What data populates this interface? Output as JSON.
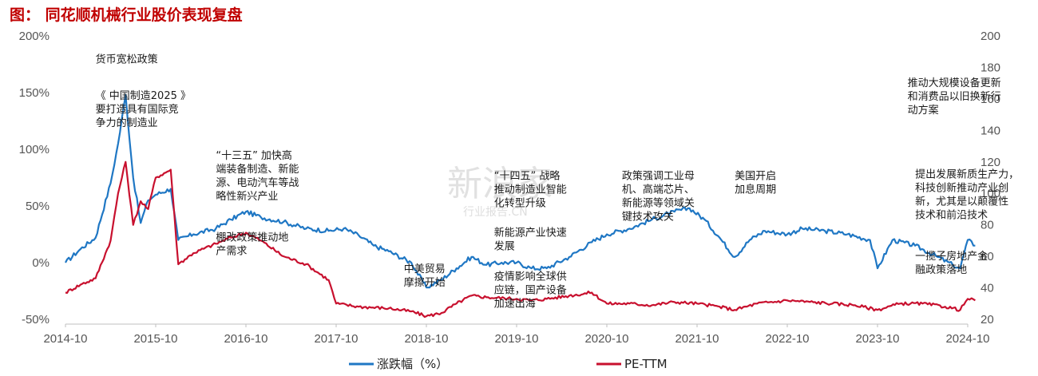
{
  "title": "图：  同花顺机械行业股价表现复盘",
  "watermark": {
    "text": "新浪家",
    "subtext": "行业报告.CN"
  },
  "colors": {
    "series1": "#1f77c4",
    "series2": "#c8102e",
    "title": "#c00000"
  },
  "chart_data": {
    "type": "line",
    "x_ticks": [
      "2014-10",
      "2015-10",
      "2016-10",
      "2017-10",
      "2018-10",
      "2019-10",
      "2020-10",
      "2021-10",
      "2022-10",
      "2023-10",
      "2024-10"
    ],
    "y_left_ticks": [
      "200%",
      "150%",
      "100%",
      "50%",
      "0%",
      "-50%"
    ],
    "y_left_range": [
      -50,
      200
    ],
    "y_right_ticks": [
      "200",
      "180",
      "160",
      "140",
      "120",
      "100",
      "80",
      "60",
      "40",
      "20"
    ],
    "y_right_range": [
      20,
      200
    ],
    "legend_position": "bottom",
    "series": [
      {
        "name": "涨跌幅（%）",
        "axis": "left",
        "color": "#1f77c4",
        "points": [
          [
            "2014-10",
            0
          ],
          [
            "2014-12",
            12
          ],
          [
            "2015-02",
            22
          ],
          [
            "2015-04",
            70
          ],
          [
            "2015-05",
            105
          ],
          [
            "2015-06",
            148
          ],
          [
            "2015-07",
            75
          ],
          [
            "2015-08",
            35
          ],
          [
            "2015-09",
            55
          ],
          [
            "2015-10",
            60
          ],
          [
            "2015-12",
            65
          ],
          [
            "2016-01",
            20
          ],
          [
            "2016-03",
            25
          ],
          [
            "2016-06",
            30
          ],
          [
            "2016-08",
            38
          ],
          [
            "2016-10",
            45
          ],
          [
            "2016-12",
            40
          ],
          [
            "2017-03",
            36
          ],
          [
            "2017-06",
            30
          ],
          [
            "2017-09",
            28
          ],
          [
            "2017-11",
            30
          ],
          [
            "2018-01",
            24
          ],
          [
            "2018-03",
            15
          ],
          [
            "2018-05",
            10
          ],
          [
            "2018-08",
            0
          ],
          [
            "2018-10",
            -22
          ],
          [
            "2018-12",
            -15
          ],
          [
            "2019-02",
            -5
          ],
          [
            "2019-04",
            5
          ],
          [
            "2019-06",
            -2
          ],
          [
            "2019-08",
            0
          ],
          [
            "2019-10",
            0
          ],
          [
            "2019-12",
            -5
          ],
          [
            "2020-02",
            -5
          ],
          [
            "2020-05",
            5
          ],
          [
            "2020-08",
            18
          ],
          [
            "2020-10",
            25
          ],
          [
            "2021-01",
            30
          ],
          [
            "2021-04",
            38
          ],
          [
            "2021-07",
            45
          ],
          [
            "2021-09",
            48
          ],
          [
            "2021-11",
            38
          ],
          [
            "2022-01",
            22
          ],
          [
            "2022-03",
            5
          ],
          [
            "2022-05",
            20
          ],
          [
            "2022-07",
            28
          ],
          [
            "2022-10",
            25
          ],
          [
            "2022-12",
            30
          ],
          [
            "2023-03",
            28
          ],
          [
            "2023-06",
            25
          ],
          [
            "2023-09",
            20
          ],
          [
            "2023-10",
            -5
          ],
          [
            "2023-12",
            20
          ],
          [
            "2024-03",
            15
          ],
          [
            "2024-06",
            5
          ],
          [
            "2024-08",
            -2
          ],
          [
            "2024-09",
            -5
          ],
          [
            "2024-10",
            20
          ],
          [
            "2024-11",
            15
          ]
        ]
      },
      {
        "name": "PE-TTM",
        "axis": "right",
        "color": "#c8102e",
        "points": [
          [
            "2014-10",
            37
          ],
          [
            "2014-12",
            42
          ],
          [
            "2015-02",
            46
          ],
          [
            "2015-04",
            70
          ],
          [
            "2015-05",
            100
          ],
          [
            "2015-06",
            120
          ],
          [
            "2015-07",
            80
          ],
          [
            "2015-08",
            95
          ],
          [
            "2015-09",
            90
          ],
          [
            "2015-10",
            110
          ],
          [
            "2015-12",
            115
          ],
          [
            "2016-01",
            55
          ],
          [
            "2016-03",
            62
          ],
          [
            "2016-06",
            68
          ],
          [
            "2016-08",
            72
          ],
          [
            "2016-10",
            75
          ],
          [
            "2016-12",
            70
          ],
          [
            "2017-03",
            60
          ],
          [
            "2017-06",
            55
          ],
          [
            "2017-09",
            45
          ],
          [
            "2017-10",
            30
          ],
          [
            "2018-01",
            28
          ],
          [
            "2018-05",
            27
          ],
          [
            "2018-08",
            25
          ],
          [
            "2018-10",
            22
          ],
          [
            "2018-12",
            24
          ],
          [
            "2019-02",
            30
          ],
          [
            "2019-04",
            35
          ],
          [
            "2019-06",
            34
          ],
          [
            "2019-10",
            33
          ],
          [
            "2019-12",
            32
          ],
          [
            "2020-02",
            33
          ],
          [
            "2020-05",
            35
          ],
          [
            "2020-08",
            37
          ],
          [
            "2020-10",
            30
          ],
          [
            "2021-01",
            30
          ],
          [
            "2021-04",
            29
          ],
          [
            "2021-07",
            31
          ],
          [
            "2021-10",
            30
          ],
          [
            "2022-01",
            28
          ],
          [
            "2022-03",
            26
          ],
          [
            "2022-06",
            30
          ],
          [
            "2022-10",
            32
          ],
          [
            "2023-01",
            31
          ],
          [
            "2023-04",
            30
          ],
          [
            "2023-07",
            29
          ],
          [
            "2023-10",
            26
          ],
          [
            "2024-01",
            30
          ],
          [
            "2024-04",
            30
          ],
          [
            "2024-07",
            28
          ],
          [
            "2024-09",
            26
          ],
          [
            "2024-10",
            33
          ],
          [
            "2024-11",
            32
          ]
        ]
      }
    ],
    "annotations": [
      {
        "lines": [
          "货币宽松政策"
        ],
        "date": "2015-02",
        "y": 183
      },
      {
        "lines": [
          "《 中国制造2025 》",
          "要打造具有国际竞",
          "争力的制造业"
        ],
        "date": "2015-02",
        "y": 160
      },
      {
        "lines": [
          "“十三五” 加快高",
          "端装备制造、新能",
          "源、电动汽车等战",
          "略性新兴产业"
        ],
        "date": "2016-06",
        "y": 122
      },
      {
        "lines": [
          "棚改政策推动地",
          "产需求"
        ],
        "date": "2016-06",
        "y": 70
      },
      {
        "lines": [
          "中美贸易",
          "摩擦开始"
        ],
        "date": "2018-07",
        "y": 50
      },
      {
        "lines": [
          "“十四五” 战略",
          "推动制造业智能",
          "化转型升级"
        ],
        "date": "2019-07",
        "y": 109
      },
      {
        "lines": [
          "新能源产业快速",
          "发展"
        ],
        "date": "2019-07",
        "y": 73
      },
      {
        "lines": [
          "疫情影响全球供",
          "应链，国产设备",
          "加速出海"
        ],
        "date": "2019-07",
        "y": 45
      },
      {
        "lines": [
          "政策强调工业母",
          "机、高端芯片、",
          "新能源等领域关",
          "键技术攻关"
        ],
        "date": "2020-12",
        "y": 109
      },
      {
        "lines": [
          "美国开启",
          "加息周期"
        ],
        "date": "2022-03",
        "y": 109
      },
      {
        "lines": [
          "推动大规模设备更新",
          "和消费品以旧换新行",
          "动方案"
        ],
        "date": "2024-02",
        "y": 168
      },
      {
        "lines": [
          "提出发展新质生产力，",
          "科技创新推动产业创",
          "新，尤其是以颠覆性",
          "技术和前沿技术"
        ],
        "date": "2024-03",
        "y": 110
      },
      {
        "lines": [
          "一揽子房地产金",
          "融政策落地"
        ],
        "date": "2024-03",
        "y": 58
      }
    ]
  }
}
